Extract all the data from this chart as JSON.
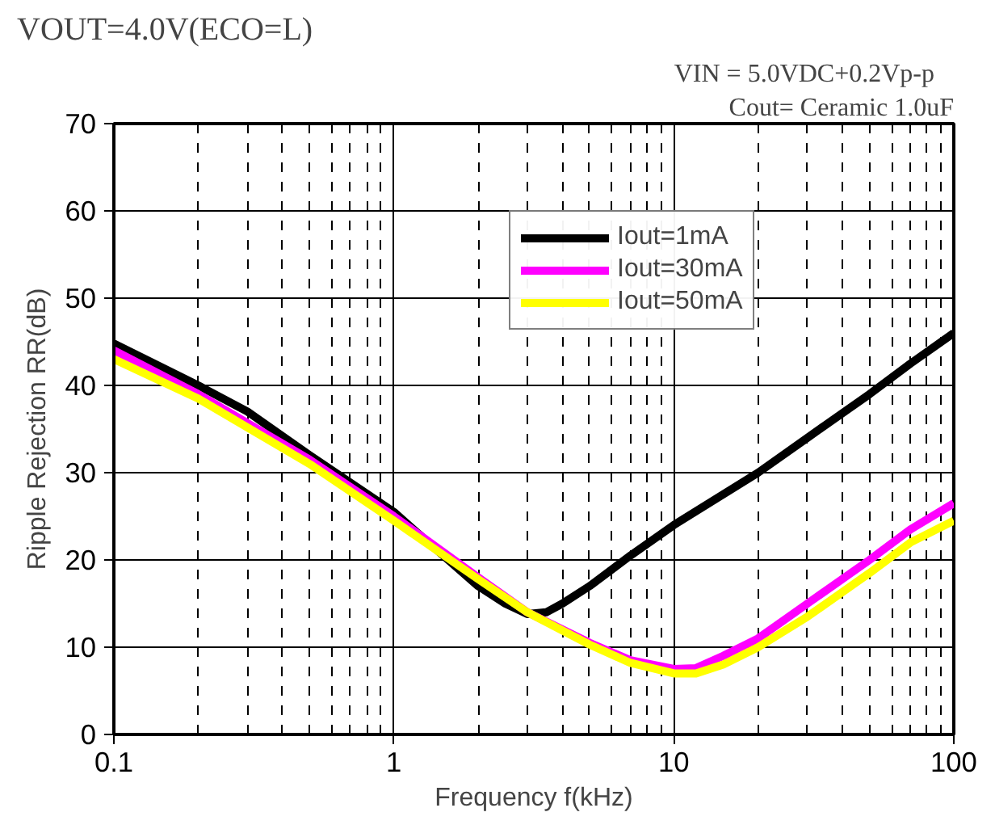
{
  "chart_data": {
    "type": "line",
    "title": "VOUT=4.0V(ECO=L)",
    "xlabel": "Frequency f(kHz)",
    "ylabel": "Ripple Rejection RR(dB)",
    "annotations": [
      "VIN    = 5.0VDC+0.2Vp-p",
      "Cout= Ceramic 1.0uF"
    ],
    "log": "x",
    "xlim": [
      0.1,
      100
    ],
    "xticks": [
      0.1,
      1,
      10,
      100
    ],
    "ylim": [
      0,
      70
    ],
    "yticks": [
      0,
      10,
      20,
      30,
      40,
      50,
      60,
      70
    ],
    "grid": true,
    "legend": "top right",
    "line_style": "solid",
    "marker": "none",
    "series": [
      {
        "name": "Iout=1mA",
        "color": "#000000",
        "x": [
          0.1,
          0.2,
          0.3,
          0.5,
          1,
          1.5,
          2,
          2.5,
          3,
          3.5,
          4,
          5,
          7,
          10,
          20,
          30,
          50,
          70,
          100
        ],
        "values": [
          44.8,
          40,
          37,
          32,
          25.5,
          20.5,
          17,
          15,
          13.8,
          14,
          15,
          17,
          20.5,
          24,
          30,
          34,
          39,
          42.5,
          46
        ]
      },
      {
        "name": "Iout=30mA",
        "color": "#ff00ff",
        "x": [
          0.1,
          0.2,
          0.5,
          1,
          2,
          3,
          5,
          7,
          10,
          12,
          15,
          20,
          30,
          50,
          70,
          100
        ],
        "values": [
          44,
          39,
          31.5,
          25,
          18,
          14,
          10.5,
          8.5,
          7.5,
          7.6,
          9,
          11,
          15,
          20,
          23.5,
          26.5
        ]
      },
      {
        "name": "Iout=50mA",
        "color": "#ffff00",
        "x": [
          0.1,
          0.2,
          0.5,
          1,
          2,
          3,
          5,
          7,
          10,
          12,
          15,
          20,
          30,
          50,
          70,
          100
        ],
        "values": [
          43,
          38.5,
          31,
          24.5,
          17.8,
          14,
          10.3,
          8.2,
          7,
          7,
          8,
          10,
          13.5,
          18.5,
          22,
          24.5
        ]
      }
    ]
  }
}
